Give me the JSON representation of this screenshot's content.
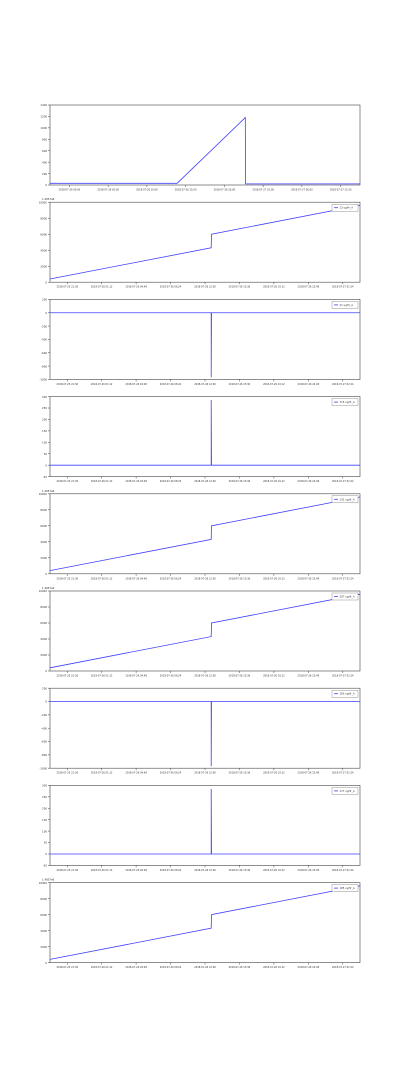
{
  "chart_data": [
    {
      "type": "line",
      "legend": "",
      "offset_label": "",
      "ylim": [
        0,
        1400
      ],
      "y_ticks": [
        "0",
        "200",
        "400",
        "600",
        "800",
        "1000",
        "1200",
        "1400"
      ],
      "x_ticks": [
        "2018-07-26 00:00",
        "2018-07-26 05:00",
        "2018-07-26 10:00",
        "2018-07-26 15:00",
        "2018-07-26 20:00",
        "2018-07-27 01:00",
        "2018-07-27 06:00",
        "2018-07-27 11:00"
      ],
      "series": [
        {
          "color": "#4040ff",
          "x": [
            0,
            0.41,
            0.63,
            0.631,
            1.0
          ],
          "y": [
            30,
            30,
            1180,
            20,
            20
          ]
        }
      ]
    },
    {
      "type": "line",
      "legend": "13 ugHr_A",
      "offset_label": "1.4857e6",
      "ylim": [
        0,
        10
      ],
      "y_ticks": [
        "0",
        "2000",
        "4000",
        "6000",
        "8000",
        "10000"
      ],
      "x_ticks": [
        "2018-07-25 21:36",
        "2018-07-26 01:12",
        "2018-07-26 04:48",
        "2018-07-26 08:24",
        "2018-07-26 12:00",
        "2018-07-26 15:36",
        "2018-07-26 19:12",
        "2018-07-26 22:48",
        "2018-07-27 02:24"
      ],
      "series": [
        {
          "color": "#4040ff",
          "x": [
            0,
            0.52,
            0.521,
            1.0
          ],
          "y": [
            0.4,
            4.3,
            6.0,
            9.6
          ]
        }
      ]
    },
    {
      "type": "line",
      "legend": "21 ugHr_A",
      "offset_label": "",
      "ylim": [
        -1000,
        200
      ],
      "y_ticks": [
        "-1000",
        "-800",
        "-600",
        "-400",
        "-200",
        "0",
        "200"
      ],
      "x_ticks": [
        "2018-07-25 21:36",
        "2018-07-26 01:12",
        "2018-07-26 04:48",
        "2018-07-26 08:24",
        "2018-07-26 12:00",
        "2018-07-26 15:36",
        "2018-07-26 19:12",
        "2018-07-26 22:48",
        "2018-07-27 02:24"
      ],
      "series": [
        {
          "color": "#4040ff",
          "x": [
            0,
            0.52,
            0.52,
            0.521,
            1.0
          ],
          "y": [
            0,
            0,
            -970,
            0,
            0
          ]
        }
      ]
    },
    {
      "type": "line",
      "legend": "715 ugHr_A",
      "offset_label": "",
      "ylim": [
        -50,
        300
      ],
      "y_ticks": [
        "-50",
        "0",
        "50",
        "100",
        "150",
        "200",
        "250",
        "300"
      ],
      "x_ticks": [
        "2018-07-25 21:36",
        "2018-07-26 01:12",
        "2018-07-26 04:48",
        "2018-07-26 08:24",
        "2018-07-26 12:00",
        "2018-07-26 15:36",
        "2018-07-26 19:12",
        "2018-07-26 22:48",
        "2018-07-27 02:24"
      ],
      "series": [
        {
          "color": "#4040ff",
          "x": [
            0,
            0.52,
            0.52,
            0.521,
            1.0
          ],
          "y": [
            0,
            0,
            285,
            0,
            0
          ]
        }
      ]
    },
    {
      "type": "line",
      "legend": "131 ugHr_A",
      "offset_label": "1.4857e6",
      "ylim": [
        0,
        10
      ],
      "y_ticks": [
        "0",
        "2000",
        "4000",
        "6000",
        "8000",
        "10000"
      ],
      "x_ticks": [
        "2018-07-25 21:36",
        "2018-07-26 01:12",
        "2018-07-26 04:48",
        "2018-07-26 08:24",
        "2018-07-26 12:00",
        "2018-07-26 15:36",
        "2018-07-26 19:12",
        "2018-07-26 22:48",
        "2018-07-27 02:24"
      ],
      "series": [
        {
          "color": "#4040ff",
          "x": [
            0,
            0.52,
            0.521,
            1.0
          ],
          "y": [
            0.4,
            4.3,
            6.0,
            9.6
          ]
        }
      ]
    },
    {
      "type": "line",
      "legend": "207 ugHr_A",
      "offset_label": "1.4857e6",
      "ylim": [
        0,
        10
      ],
      "y_ticks": [
        "0",
        "2000",
        "4000",
        "6000",
        "8000",
        "10000"
      ],
      "x_ticks": [
        "2018-07-25 21:36",
        "2018-07-26 01:12",
        "2018-07-26 04:48",
        "2018-07-26 08:24",
        "2018-07-26 12:00",
        "2018-07-26 15:36",
        "2018-07-26 19:12",
        "2018-07-26 22:48",
        "2018-07-27 02:24"
      ],
      "series": [
        {
          "color": "#4040ff",
          "x": [
            0,
            0.52,
            0.521,
            1.0
          ],
          "y": [
            0.4,
            4.3,
            6.0,
            9.6
          ]
        }
      ]
    },
    {
      "type": "line",
      "legend": "183 ugHr_A",
      "offset_label": "",
      "ylim": [
        -1000,
        200
      ],
      "y_ticks": [
        "-1000",
        "-800",
        "-600",
        "-400",
        "-200",
        "0",
        "200"
      ],
      "x_ticks": [
        "2018-07-25 21:36",
        "2018-07-26 01:12",
        "2018-07-26 04:48",
        "2018-07-26 08:24",
        "2018-07-26 12:00",
        "2018-07-26 15:36",
        "2018-07-26 19:12",
        "2018-07-26 22:48",
        "2018-07-27 02:24"
      ],
      "series": [
        {
          "color": "#4040ff",
          "x": [
            0,
            0.52,
            0.52,
            0.521,
            1.0
          ],
          "y": [
            0,
            0,
            -970,
            0,
            0
          ]
        }
      ]
    },
    {
      "type": "line",
      "legend": "177 ugHr_A",
      "offset_label": "",
      "ylim": [
        -50,
        300
      ],
      "y_ticks": [
        "-50",
        "0",
        "50",
        "100",
        "150",
        "200",
        "250",
        "300"
      ],
      "x_ticks": [
        "2018-07-25 21:36",
        "2018-07-26 01:12",
        "2018-07-26 04:48",
        "2018-07-26 08:24",
        "2018-07-26 12:00",
        "2018-07-26 15:36",
        "2018-07-26 19:12",
        "2018-07-26 22:48",
        "2018-07-27 02:24"
      ],
      "series": [
        {
          "color": "#4040ff",
          "x": [
            0,
            0.52,
            0.52,
            0.521,
            1.0
          ],
          "y": [
            0,
            0,
            285,
            0,
            0
          ]
        }
      ]
    },
    {
      "type": "line",
      "legend": "185 ugHr_A",
      "offset_label": "1.4857e6",
      "ylim": [
        0,
        10
      ],
      "y_ticks": [
        "0",
        "2000",
        "4000",
        "6000",
        "8000",
        "10000"
      ],
      "x_ticks": [
        "2018-07-25 21:36",
        "2018-07-26 01:12",
        "2018-07-26 04:48",
        "2018-07-26 08:24",
        "2018-07-26 12:00",
        "2018-07-26 15:36",
        "2018-07-26 19:12",
        "2018-07-26 22:48",
        "2018-07-27 02:24"
      ],
      "series": [
        {
          "color": "#4040ff",
          "x": [
            0,
            0.52,
            0.521,
            1.0
          ],
          "y": [
            0.4,
            4.3,
            6.0,
            9.6
          ]
        }
      ]
    }
  ]
}
